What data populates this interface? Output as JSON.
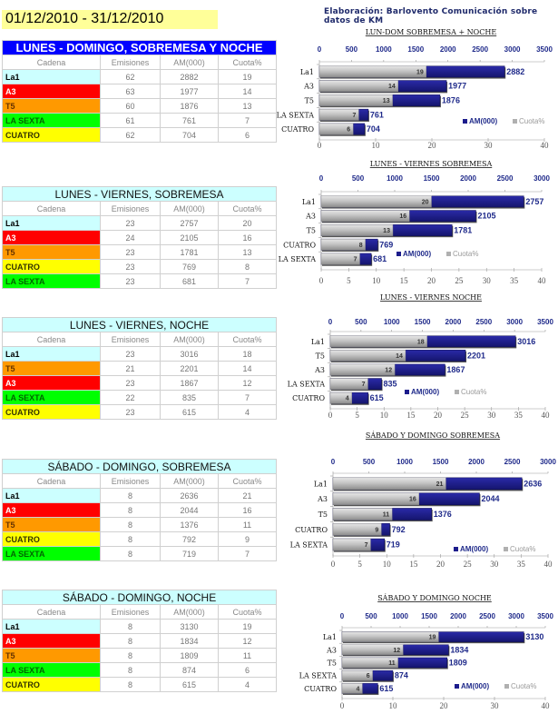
{
  "header": {
    "date_range": "01/12/2010 - 31/12/2010",
    "credit": "Elaboración: Barlovento Comunicación sobre datos de KM"
  },
  "colors": {
    "La1": "#ccffff",
    "A3": "#ff0000",
    "T5": "#ff9900",
    "LA SEXTA": "#00ff00",
    "CUATRO": "#ffff00",
    "am_bar": "#1c1c8c",
    "cuota_bar": "#b8b8b8",
    "first_title_bg": "#0000ff"
  },
  "table_headers": [
    "Cadena",
    "Emisiones",
    "AM(000)",
    "Cuota%"
  ],
  "tables": [
    {
      "title": "LUNES - DOMINGO, SOBREMESA Y NOCHE",
      "rows": [
        {
          "cadena": "La1",
          "emisiones": "62",
          "am": "2882",
          "cuota": "19"
        },
        {
          "cadena": "A3",
          "emisiones": "63",
          "am": "1977",
          "cuota": "14"
        },
        {
          "cadena": "T5",
          "emisiones": "60",
          "am": "1876",
          "cuota": "13"
        },
        {
          "cadena": "LA SEXTA",
          "emisiones": "61",
          "am": "761",
          "cuota": "7"
        },
        {
          "cadena": "CUATRO",
          "emisiones": "62",
          "am": "704",
          "cuota": "6"
        }
      ]
    },
    {
      "title": "LUNES - VIERNES, SOBREMESA",
      "rows": [
        {
          "cadena": "La1",
          "emisiones": "23",
          "am": "2757",
          "cuota": "20"
        },
        {
          "cadena": "A3",
          "emisiones": "24",
          "am": "2105",
          "cuota": "16"
        },
        {
          "cadena": "T5",
          "emisiones": "23",
          "am": "1781",
          "cuota": "13"
        },
        {
          "cadena": "CUATRO",
          "emisiones": "23",
          "am": "769",
          "cuota": "8"
        },
        {
          "cadena": "LA SEXTA",
          "emisiones": "23",
          "am": "681",
          "cuota": "7"
        }
      ]
    },
    {
      "title": "LUNES - VIERNES, NOCHE",
      "rows": [
        {
          "cadena": "La1",
          "emisiones": "23",
          "am": "3016",
          "cuota": "18"
        },
        {
          "cadena": "T5",
          "emisiones": "21",
          "am": "2201",
          "cuota": "14"
        },
        {
          "cadena": "A3",
          "emisiones": "23",
          "am": "1867",
          "cuota": "12"
        },
        {
          "cadena": "LA SEXTA",
          "emisiones": "22",
          "am": "835",
          "cuota": "7"
        },
        {
          "cadena": "CUATRO",
          "emisiones": "23",
          "am": "615",
          "cuota": "4"
        }
      ]
    },
    {
      "title": "SÁBADO - DOMINGO, SOBREMESA",
      "rows": [
        {
          "cadena": "La1",
          "emisiones": "8",
          "am": "2636",
          "cuota": "21"
        },
        {
          "cadena": "A3",
          "emisiones": "8",
          "am": "2044",
          "cuota": "16"
        },
        {
          "cadena": "T5",
          "emisiones": "8",
          "am": "1376",
          "cuota": "11"
        },
        {
          "cadena": "CUATRO",
          "emisiones": "8",
          "am": "792",
          "cuota": "9"
        },
        {
          "cadena": "LA SEXTA",
          "emisiones": "8",
          "am": "719",
          "cuota": "7"
        }
      ]
    },
    {
      "title": "SÁBADO - DOMINGO, NOCHE",
      "rows": [
        {
          "cadena": "La1",
          "emisiones": "8",
          "am": "3130",
          "cuota": "19"
        },
        {
          "cadena": "A3",
          "emisiones": "8",
          "am": "1834",
          "cuota": "12"
        },
        {
          "cadena": "T5",
          "emisiones": "8",
          "am": "1809",
          "cuota": "11"
        },
        {
          "cadena": "LA SEXTA",
          "emisiones": "8",
          "am": "874",
          "cuota": "6"
        },
        {
          "cadena": "CUATRO",
          "emisiones": "8",
          "am": "615",
          "cuota": "4"
        }
      ]
    }
  ],
  "chart_data": [
    {
      "type": "bar",
      "orientation": "horizontal",
      "title": "LUN-DOM SOBREMESA + NOCHE",
      "categories": [
        "La1",
        "A3",
        "T5",
        "LA SEXTA",
        "CUATRO"
      ],
      "series": [
        {
          "name": "AM(000)",
          "axis": "top",
          "values": [
            2882,
            1977,
            1876,
            761,
            704
          ]
        },
        {
          "name": "Cuota%",
          "axis": "bottom",
          "values": [
            19,
            14,
            13,
            7,
            6
          ]
        }
      ],
      "top_axis": {
        "range": [
          0,
          3500
        ],
        "ticks": [
          0,
          500,
          1000,
          1500,
          2000,
          2500,
          3000,
          3500
        ]
      },
      "bottom_axis": {
        "range": [
          0,
          40
        ],
        "ticks": [
          0,
          10,
          20,
          30,
          40
        ]
      },
      "legend": [
        "AM(000)",
        "Cuota%"
      ],
      "legend_position": "bottom-right",
      "grid": false
    },
    {
      "type": "bar",
      "orientation": "horizontal",
      "title": "LUNES - VIERNES SOBREMESA",
      "categories": [
        "La1",
        "A3",
        "T5",
        "CUATRO",
        "LA SEXTA"
      ],
      "series": [
        {
          "name": "AM(000)",
          "axis": "top",
          "values": [
            2757,
            2105,
            1781,
            769,
            681
          ]
        },
        {
          "name": "Cuota%",
          "axis": "bottom",
          "values": [
            20,
            16,
            13,
            8,
            7
          ]
        }
      ],
      "top_axis": {
        "range": [
          0,
          3000
        ],
        "ticks": [
          0,
          500,
          1000,
          1500,
          2000,
          2500,
          3000
        ]
      },
      "bottom_axis": {
        "range": [
          0,
          40
        ],
        "ticks": [
          0,
          5,
          10,
          15,
          20,
          25,
          30,
          35,
          40
        ]
      },
      "legend": [
        "AM(000)",
        "Cuota%"
      ],
      "legend_position": "bottom-center",
      "grid": false
    },
    {
      "type": "bar",
      "orientation": "horizontal",
      "title": "LUNES - VIERNES  NOCHE",
      "categories": [
        "La1",
        "T5",
        "A3",
        "LA SEXTA",
        "CUATRO"
      ],
      "series": [
        {
          "name": "AM(000)",
          "axis": "top",
          "values": [
            3016,
            2201,
            1867,
            835,
            615
          ]
        },
        {
          "name": "Cuota%",
          "axis": "bottom",
          "values": [
            18,
            14,
            12,
            7,
            4
          ]
        }
      ],
      "top_axis": {
        "range": [
          0,
          3500
        ],
        "ticks": [
          0,
          500,
          1000,
          1500,
          2000,
          2500,
          3000,
          3500
        ]
      },
      "bottom_axis": {
        "range": [
          0,
          40
        ],
        "ticks": [
          0,
          5,
          10,
          15,
          20,
          25,
          30,
          35,
          40
        ]
      },
      "legend": [
        "AM(000)",
        "Cuota%"
      ],
      "legend_position": "bottom-center",
      "grid": false
    },
    {
      "type": "bar",
      "orientation": "horizontal",
      "title": "SÁBADO Y DOMINGO SOBREMESA",
      "categories": [
        "La1",
        "A3",
        "T5",
        "CUATRO",
        "LA SEXTA"
      ],
      "series": [
        {
          "name": "AM(000)",
          "axis": "top",
          "values": [
            2636,
            2044,
            1376,
            792,
            719
          ]
        },
        {
          "name": "Cuota%",
          "axis": "bottom",
          "values": [
            21,
            16,
            11,
            9,
            7
          ]
        }
      ],
      "top_axis": {
        "range": [
          0,
          3000
        ],
        "ticks": [
          0,
          500,
          1000,
          1500,
          2000,
          2500,
          3000
        ]
      },
      "bottom_axis": {
        "range": [
          0,
          40
        ],
        "ticks": [
          0,
          5,
          10,
          15,
          20,
          25,
          30,
          35,
          40
        ]
      },
      "legend": [
        "AM(000)",
        "Cuota%"
      ],
      "legend_position": "bottom-right",
      "grid": false
    },
    {
      "type": "bar",
      "orientation": "horizontal",
      "title": "SÁBADO Y DOMINGO  NOCHE",
      "categories": [
        "La1",
        "A3",
        "T5",
        "LA SEXTA",
        "CUATRO"
      ],
      "series": [
        {
          "name": "AM(000)",
          "axis": "top",
          "values": [
            3130,
            1834,
            1809,
            874,
            615
          ]
        },
        {
          "name": "Cuota%",
          "axis": "bottom",
          "values": [
            19,
            12,
            11,
            6,
            4
          ]
        }
      ],
      "top_axis": {
        "range": [
          0,
          3500
        ],
        "ticks": [
          0,
          500,
          1000,
          1500,
          2000,
          2500,
          3000,
          3500
        ]
      },
      "bottom_axis": {
        "range": [
          0,
          40
        ],
        "ticks": [
          0,
          10,
          20,
          30,
          40
        ]
      },
      "legend": [
        "AM(000)",
        "Cuota%"
      ],
      "legend_position": "bottom-right",
      "grid": false
    }
  ]
}
